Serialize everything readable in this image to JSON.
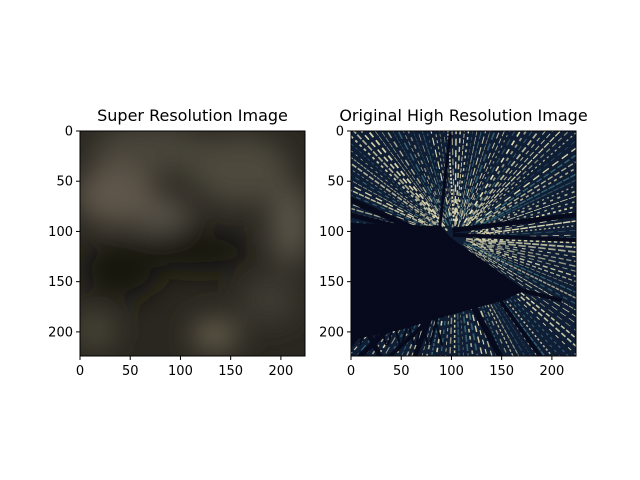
{
  "chart_data": [
    {
      "type": "heatmap",
      "title": "Super Resolution Image",
      "xlabel": "",
      "ylabel": "",
      "xlim": [
        0,
        224
      ],
      "ylim": [
        224,
        0
      ],
      "x_ticks": [
        0,
        50,
        100,
        150,
        200
      ],
      "y_ticks": [
        0,
        50,
        100,
        150,
        200
      ],
      "grid": false,
      "colors": {
        "base": "#2a2720",
        "light": "#6e675a",
        "dark": "#151510"
      }
    },
    {
      "type": "heatmap",
      "title": "Original High Resolution Image",
      "xlabel": "",
      "ylabel": "",
      "xlim": [
        0,
        224
      ],
      "ylim": [
        224,
        0
      ],
      "x_ticks": [
        0,
        50,
        100,
        150,
        200
      ],
      "y_ticks": [
        0,
        50,
        100,
        150,
        200
      ],
      "grid": false,
      "colors": {
        "background": "#0f1e34",
        "streak": "#e8e2b8",
        "teal": "#3a6a78",
        "structure": "#060a1c"
      }
    }
  ]
}
